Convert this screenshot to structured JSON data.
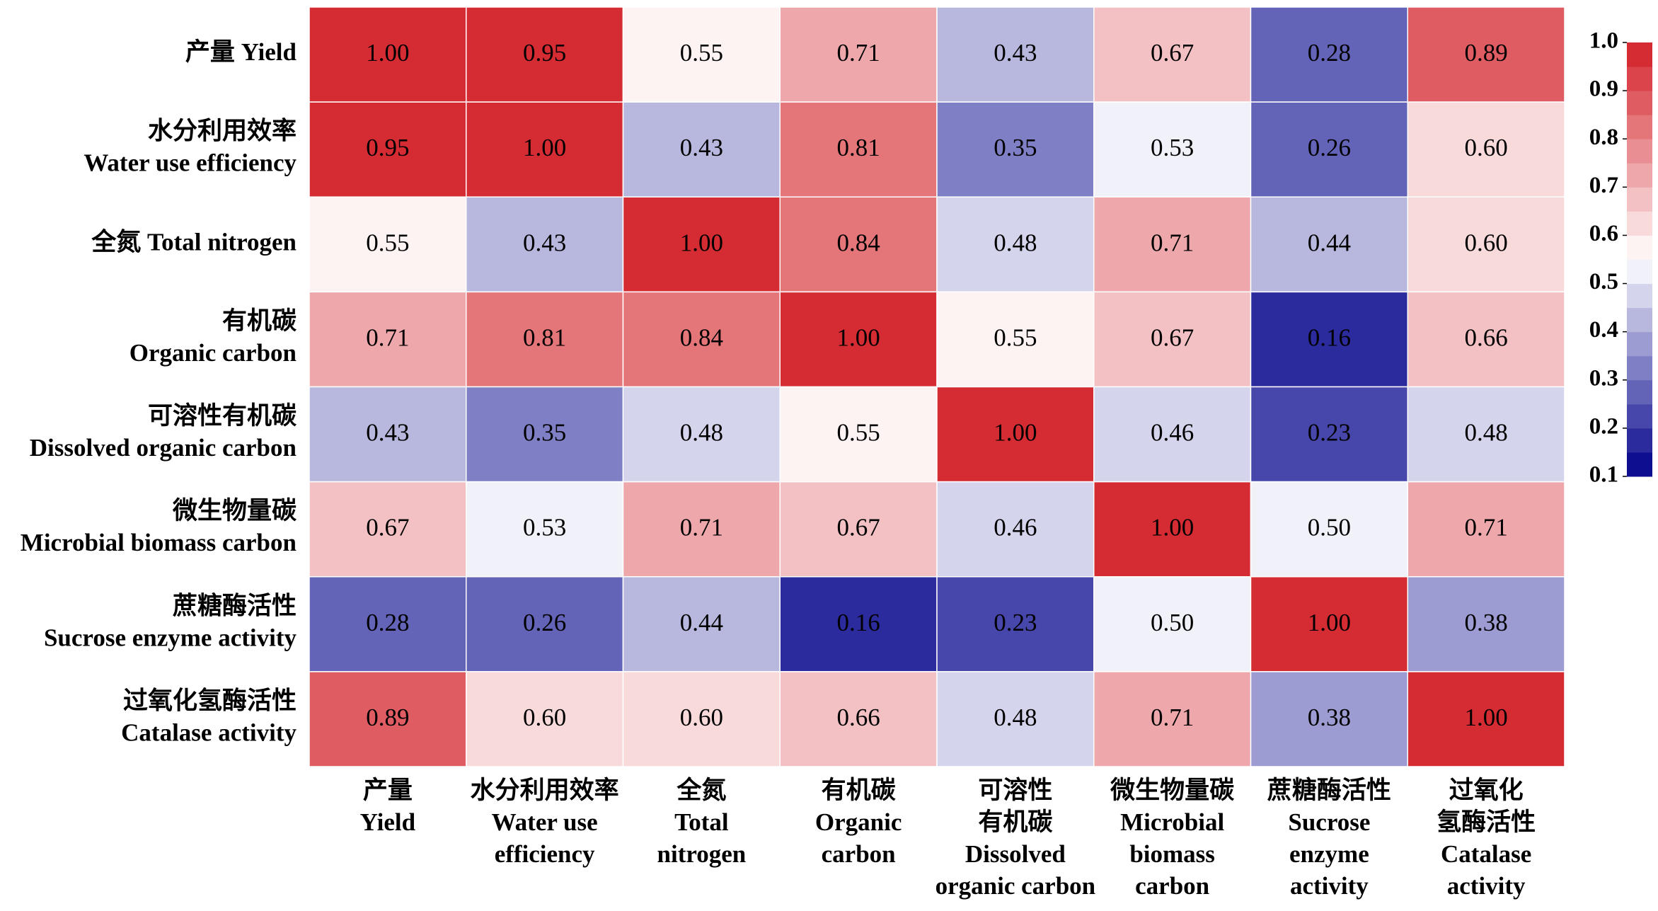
{
  "chart_data": {
    "type": "heatmap",
    "row_labels": [
      [
        "产量 Yield"
      ],
      [
        "水分利用效率",
        "Water use efficiency"
      ],
      [
        "全氮 Total nitrogen"
      ],
      [
        "有机碳",
        "Organic carbon"
      ],
      [
        "可溶性有机碳",
        "Dissolved organic carbon"
      ],
      [
        "微生物量碳",
        "Microbial biomass carbon"
      ],
      [
        "蔗糖酶活性",
        "Sucrose enzyme activity"
      ],
      [
        "过氧化氢酶活性",
        "Catalase activity"
      ]
    ],
    "col_labels": [
      [
        "产量",
        "Yield"
      ],
      [
        "水分利用效率",
        "Water use",
        "efficiency"
      ],
      [
        "全氮",
        "Total",
        "nitrogen"
      ],
      [
        "有机碳",
        "Organic",
        "carbon"
      ],
      [
        "可溶性",
        "有机碳",
        "Dissolved",
        "organic carbon"
      ],
      [
        "微生物量碳",
        "Microbial",
        "biomass",
        "carbon"
      ],
      [
        "蔗糖酶活性",
        "Sucrose",
        "enzyme",
        "activity"
      ],
      [
        "过氧化",
        "氢酶活性",
        "Catalase",
        "activity"
      ]
    ],
    "values": [
      [
        1.0,
        0.95,
        0.55,
        0.71,
        0.43,
        0.67,
        0.28,
        0.89
      ],
      [
        0.95,
        1.0,
        0.43,
        0.81,
        0.35,
        0.53,
        0.26,
        0.6
      ],
      [
        0.55,
        0.43,
        1.0,
        0.84,
        0.48,
        0.71,
        0.44,
        0.6
      ],
      [
        0.71,
        0.81,
        0.84,
        1.0,
        0.55,
        0.67,
        0.16,
        0.66
      ],
      [
        0.43,
        0.35,
        0.48,
        0.55,
        1.0,
        0.46,
        0.23,
        0.48
      ],
      [
        0.67,
        0.53,
        0.71,
        0.67,
        0.46,
        1.0,
        0.5,
        0.71
      ],
      [
        0.28,
        0.26,
        0.44,
        0.16,
        0.23,
        0.5,
        1.0,
        0.38
      ],
      [
        0.89,
        0.6,
        0.6,
        0.66,
        0.48,
        0.71,
        0.38,
        1.0
      ]
    ],
    "value_labels": [
      [
        "1.00",
        "0.95",
        "0.55",
        "0.71",
        "0.43",
        "0.67",
        "0.28",
        "0.89"
      ],
      [
        "0.95",
        "1.00",
        "0.43",
        "0.81",
        "0.35",
        "0.53",
        "0.26",
        "0.60"
      ],
      [
        "0.55",
        "0.43",
        "1.00",
        "0.84",
        "0.48",
        "0.71",
        "0.44",
        "0.60"
      ],
      [
        "0.71",
        "0.81",
        "0.84",
        "1.00",
        "0.55",
        "0.67",
        "0.16",
        "0.66"
      ],
      [
        "0.43",
        "0.35",
        "0.48",
        "0.55",
        "1.00",
        "0.46",
        "0.23",
        "0.48"
      ],
      [
        "0.67",
        "0.53",
        "0.71",
        "0.67",
        "0.46",
        "1.00",
        "0.50",
        "0.71"
      ],
      [
        "0.28",
        "0.26",
        "0.44",
        "0.16",
        "0.23",
        "0.50",
        "1.00",
        "0.38"
      ],
      [
        "0.89",
        "0.60",
        "0.60",
        "0.66",
        "0.48",
        "0.71",
        "0.38",
        "1.00"
      ]
    ],
    "clim": [
      0.1,
      1.0
    ],
    "colorbar_ticks": [
      {
        "value": 1.0,
        "label": "1.0"
      },
      0.9,
      0.8,
      0.7,
      0.6,
      0.5,
      0.4,
      0.3,
      0.2,
      0.1
    ],
    "colorbar_bands": 18,
    "colormap": [
      {
        "value": 0.1,
        "color": "#00008b"
      },
      {
        "value": 0.55,
        "color": "#ffffff"
      },
      {
        "value": 1.0,
        "color": "#d21f26"
      }
    ]
  }
}
